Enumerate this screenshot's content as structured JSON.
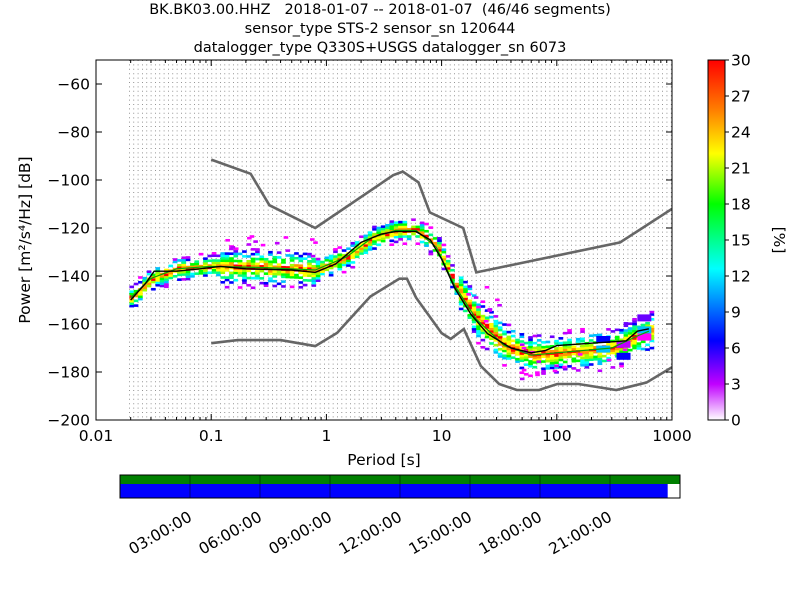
{
  "title_lines": [
    "BK.BK03.00.HHZ   2018-01-07 -- 2018-01-07  (46/46 segments)",
    "sensor_type STS-2 sensor_sn 120644",
    "datalogger_type Q330S+USGS datalogger_sn 6073"
  ],
  "colors": {
    "noise_model": "#666666",
    "mode_line": "#000000",
    "mean_line": "#00aa00",
    "timeline_top": "#008000",
    "timeline_bottom": "#0000ff"
  },
  "chart_data": {
    "type": "heatmap",
    "xlabel": "Period [s]",
    "ylabel": "Power [m²/s⁴/Hz] [dB]",
    "x_scale": "log",
    "xlim": [
      0.01,
      1000
    ],
    "ylim": [
      -200,
      -50
    ],
    "x_ticks": [
      0.01,
      0.1,
      1,
      10,
      100,
      1000
    ],
    "x_tick_labels": [
      "0.01",
      "0.1",
      "1",
      "10",
      "100",
      "1000"
    ],
    "y_ticks": [
      -200,
      -180,
      -160,
      -140,
      -120,
      -100,
      -80,
      -60
    ],
    "y_tick_labels": [
      "−200",
      "−180",
      "−160",
      "−140",
      "−120",
      "−100",
      "−80",
      "−60"
    ],
    "grid": "dotted vertical lines at log period bins",
    "colorbar": {
      "label": "[%]",
      "range": [
        0,
        30
      ],
      "ticks": [
        0,
        3,
        6,
        9,
        12,
        15,
        18,
        21,
        24,
        27,
        30
      ],
      "colormap": "pqlx"
    },
    "noise_models": [
      {
        "name": "NHNM",
        "points": [
          [
            0.1,
            -91.5
          ],
          [
            0.22,
            -97.4
          ],
          [
            0.32,
            -110.5
          ],
          [
            0.8,
            -120
          ],
          [
            3.8,
            -98
          ],
          [
            4.6,
            -96.5
          ],
          [
            6.3,
            -101
          ],
          [
            7.9,
            -113.5
          ],
          [
            15.4,
            -120
          ],
          [
            20,
            -138.5
          ],
          [
            354.8,
            -126
          ],
          [
            1000,
            -112
          ]
        ]
      },
      {
        "name": "NLNM",
        "points": [
          [
            0.1,
            -168
          ],
          [
            0.17,
            -166.7
          ],
          [
            0.4,
            -166.7
          ],
          [
            0.8,
            -169.2
          ],
          [
            1.24,
            -163.7
          ],
          [
            2.4,
            -148.6
          ],
          [
            4.3,
            -141.1
          ],
          [
            5.0,
            -141.1
          ],
          [
            6.0,
            -149
          ],
          [
            10,
            -163.8
          ],
          [
            12,
            -166.2
          ],
          [
            15.6,
            -162.1
          ],
          [
            21.9,
            -177.5
          ],
          [
            31.6,
            -185
          ],
          [
            45,
            -187.5
          ],
          [
            70,
            -187.5
          ],
          [
            101,
            -185
          ],
          [
            154,
            -185
          ],
          [
            328,
            -187.5
          ],
          [
            600,
            -184.4
          ],
          [
            1000,
            -178
          ]
        ]
      }
    ],
    "mode_line": [
      [
        0.02,
        -150
      ],
      [
        0.027,
        -143
      ],
      [
        0.032,
        -138
      ],
      [
        0.05,
        -138
      ],
      [
        0.08,
        -137
      ],
      [
        0.12,
        -136
      ],
      [
        0.2,
        -137
      ],
      [
        0.5,
        -137.5
      ],
      [
        0.8,
        -138.5
      ],
      [
        1.2,
        -135
      ],
      [
        2,
        -126
      ],
      [
        3,
        -122.5
      ],
      [
        4,
        -121.5
      ],
      [
        6,
        -121.5
      ],
      [
        8,
        -125
      ],
      [
        10,
        -133
      ],
      [
        13,
        -145
      ],
      [
        18,
        -156
      ],
      [
        25,
        -164
      ],
      [
        40,
        -170
      ],
      [
        60,
        -172
      ],
      [
        80,
        -171
      ],
      [
        100,
        -169
      ],
      [
        200,
        -168
      ],
      [
        400,
        -167
      ],
      [
        500,
        -163
      ],
      [
        630,
        -162
      ]
    ],
    "mean_line": [
      [
        0.02,
        -149
      ],
      [
        0.03,
        -141
      ],
      [
        0.05,
        -137
      ],
      [
        0.1,
        -136
      ],
      [
        0.3,
        -136.5
      ],
      [
        0.8,
        -137.5
      ],
      [
        1.5,
        -132
      ],
      [
        2.5,
        -124
      ],
      [
        4,
        -121
      ],
      [
        6,
        -121
      ],
      [
        9,
        -128
      ],
      [
        13,
        -144
      ],
      [
        20,
        -158
      ],
      [
        35,
        -169
      ],
      [
        60,
        -173
      ],
      [
        100,
        -172
      ],
      [
        300,
        -170
      ],
      [
        500,
        -165
      ],
      [
        630,
        -163
      ]
    ],
    "timeline": {
      "labels": [
        "03:00:00",
        "06:00:00",
        "09:00:00",
        "12:00:00",
        "15:00:00",
        "18:00:00",
        "21:00:00"
      ],
      "data_coverage_fraction": 0.978
    }
  }
}
